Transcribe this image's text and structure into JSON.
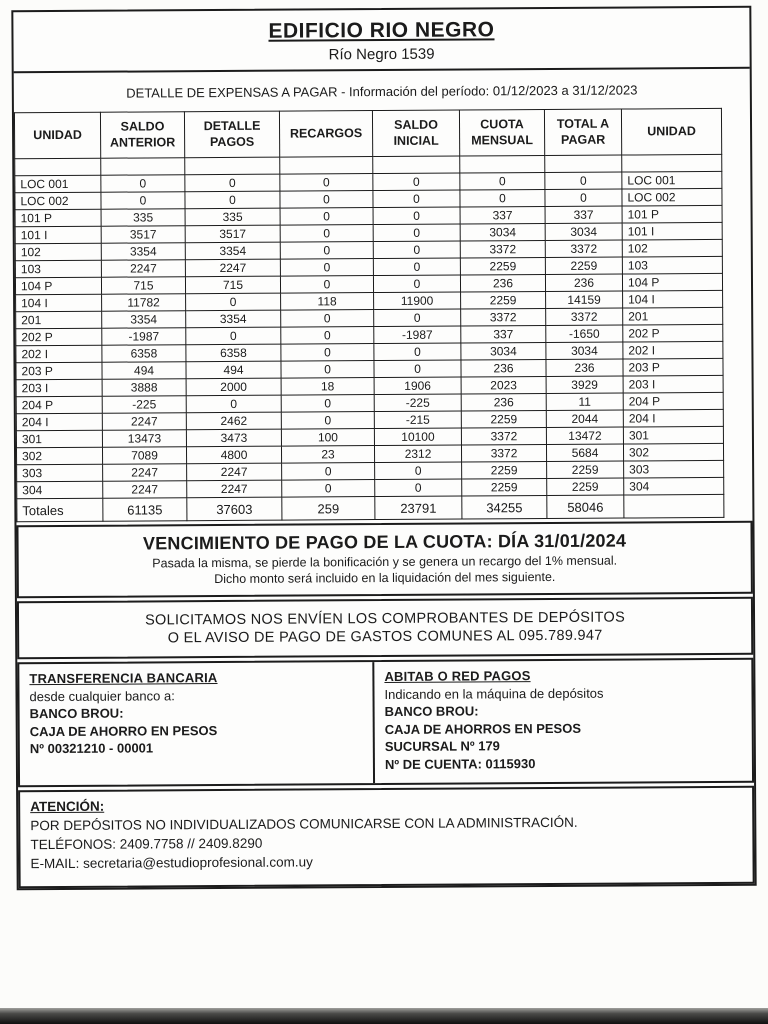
{
  "header": {
    "title": "EDIFICIO RIO NEGRO",
    "subtitle": "Río Negro 1539",
    "period": "DETALLE DE EXPENSAS A PAGAR - Información del período: 01/12/2023 a 31/12/2023"
  },
  "table": {
    "headers": [
      "UNIDAD",
      "SALDO ANTERIOR",
      "DETALLE PAGOS",
      "RECARGOS",
      "SALDO INICIAL",
      "CUOTA MENSUAL",
      "TOTAL A PAGAR",
      "UNIDAD"
    ],
    "rows": [
      [
        "LOC 001",
        "0",
        "0",
        "0",
        "0",
        "0",
        "0",
        "LOC 001"
      ],
      [
        "LOC 002",
        "0",
        "0",
        "0",
        "0",
        "0",
        "0",
        "LOC 002"
      ],
      [
        "101 P",
        "335",
        "335",
        "0",
        "0",
        "337",
        "337",
        "101 P"
      ],
      [
        "101 I",
        "3517",
        "3517",
        "0",
        "0",
        "3034",
        "3034",
        "101 I"
      ],
      [
        "102",
        "3354",
        "3354",
        "0",
        "0",
        "3372",
        "3372",
        "102"
      ],
      [
        "103",
        "2247",
        "2247",
        "0",
        "0",
        "2259",
        "2259",
        "103"
      ],
      [
        "104 P",
        "715",
        "715",
        "0",
        "0",
        "236",
        "236",
        "104 P"
      ],
      [
        "104 I",
        "11782",
        "0",
        "118",
        "11900",
        "2259",
        "14159",
        "104 I"
      ],
      [
        "201",
        "3354",
        "3354",
        "0",
        "0",
        "3372",
        "3372",
        "201"
      ],
      [
        "202 P",
        "-1987",
        "0",
        "0",
        "-1987",
        "337",
        "-1650",
        "202 P"
      ],
      [
        "202 I",
        "6358",
        "6358",
        "0",
        "0",
        "3034",
        "3034",
        "202 I"
      ],
      [
        "203 P",
        "494",
        "494",
        "0",
        "0",
        "236",
        "236",
        "203 P"
      ],
      [
        "203 I",
        "3888",
        "2000",
        "18",
        "1906",
        "2023",
        "3929",
        "203 I"
      ],
      [
        "204 P",
        "-225",
        "0",
        "0",
        "-225",
        "236",
        "11",
        "204 P"
      ],
      [
        "204 I",
        "2247",
        "2462",
        "0",
        "-215",
        "2259",
        "2044",
        "204 I"
      ],
      [
        "301",
        "13473",
        "3473",
        "100",
        "10100",
        "3372",
        "13472",
        "301"
      ],
      [
        "302",
        "7089",
        "4800",
        "23",
        "2312",
        "3372",
        "5684",
        "302"
      ],
      [
        "303",
        "2247",
        "2247",
        "0",
        "0",
        "2259",
        "2259",
        "303"
      ],
      [
        "304",
        "2247",
        "2247",
        "0",
        "0",
        "2259",
        "2259",
        "304"
      ]
    ],
    "totals": [
      "Totales",
      "61135",
      "37603",
      "259",
      "23791",
      "34255",
      "58046",
      ""
    ]
  },
  "due": {
    "title": "VENCIMIENTO DE PAGO DE LA CUOTA: DÍA 31/01/2024",
    "note1": "Pasada la misma, se pierde la bonificación y se genera un recargo del 1% mensual.",
    "note2": "Dicho monto será incluido en la liquidación del mes siguiente."
  },
  "request": {
    "line1": "SOLICITAMOS NOS ENVÍEN LOS COMPROBANTES DE DEPÓSITOS",
    "line2": "O EL AVISO DE PAGO DE GASTOS COMUNES AL 095.789.947"
  },
  "payment": {
    "bank": {
      "title": "TRANSFERENCIA BANCARIA",
      "intro": "desde cualquier banco a:",
      "bank_name": "BANCO BROU:",
      "account_type": "CAJA DE AHORRO EN PESOS",
      "account_number": "Nº 00321210 - 00001"
    },
    "abitab": {
      "title": "ABITAB O RED PAGOS",
      "intro": "Indicando en la máquina de depósitos",
      "bank_name": "BANCO BROU:",
      "account_type": "CAJA DE AHORROS EN PESOS",
      "branch": "SUCURSAL Nº 179",
      "account_number": "Nº DE CUENTA: 0115930"
    }
  },
  "attention": {
    "title": "ATENCIÓN:",
    "line1": "POR DEPÓSITOS NO INDIVIDUALIZADOS COMUNICARSE CON LA ADMINISTRACIÓN.",
    "line2": "TELÉFONOS: 2409.7758 // 2409.8290",
    "line3": "E-MAIL: secretaria@estudioprofesional.com.uy"
  }
}
